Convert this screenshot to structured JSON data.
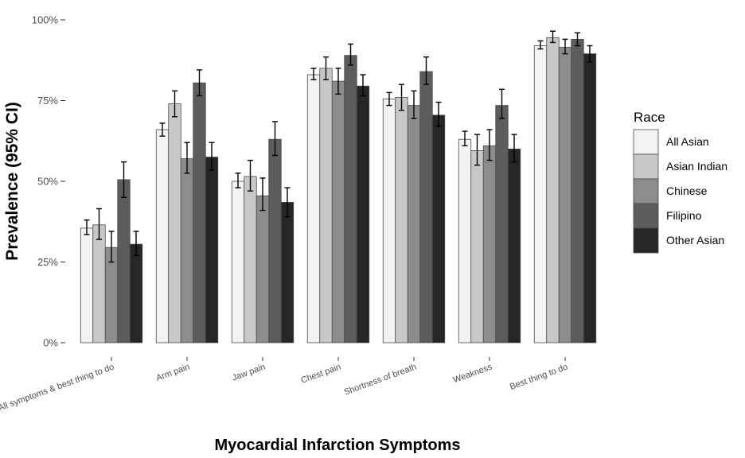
{
  "chart_data": {
    "type": "bar",
    "xlabel": "Myocardial Infarction Symptoms",
    "ylabel": "Prevalence (95% CI)",
    "ylim": [
      0,
      100
    ],
    "yticks": [
      0,
      25,
      50,
      75,
      100
    ],
    "ytick_labels": [
      "0%",
      "25%",
      "50%",
      "75%",
      "100%"
    ],
    "categories": [
      "All symptoms & best thing to do",
      "Arm pain",
      "Jaw pain",
      "Chest pain",
      "Shortness of breath",
      "Weakness",
      "Best thing to do"
    ],
    "legend_title": "Race",
    "legend_position": "right",
    "grid": false,
    "series": [
      {
        "name": "All Asian",
        "color": "#f2f2f2",
        "values": [
          35.5,
          66,
          50,
          83,
          75.5,
          63,
          92
        ],
        "ci_low": [
          33.5,
          64,
          48,
          81.5,
          73.5,
          61,
          91
        ],
        "ci_high": [
          38,
          68,
          52.5,
          85,
          77.5,
          65.5,
          93.5
        ]
      },
      {
        "name": "Asian Indian",
        "color": "#c8c8c8",
        "values": [
          36.5,
          74,
          51.5,
          85,
          76,
          59.5,
          94.5
        ],
        "ci_low": [
          32,
          70,
          47,
          81.5,
          72,
          55,
          93
        ],
        "ci_high": [
          41.5,
          78,
          56.5,
          88.5,
          80,
          64.5,
          96.5
        ]
      },
      {
        "name": "Chinese",
        "color": "#8c8c8c",
        "values": [
          29.5,
          57,
          45.5,
          81,
          73.5,
          61,
          91.5
        ],
        "ci_low": [
          25,
          52.5,
          41,
          77,
          69.5,
          56.5,
          89.5
        ],
        "ci_high": [
          34.5,
          62,
          51,
          85,
          78,
          66,
          94
        ]
      },
      {
        "name": "Filipino",
        "color": "#5c5c5c",
        "values": [
          50.5,
          80.5,
          63,
          89,
          84,
          73.5,
          94
        ],
        "ci_low": [
          45,
          76.5,
          58,
          86,
          80,
          69.5,
          92
        ],
        "ci_high": [
          56,
          84.5,
          68.5,
          92.5,
          88.5,
          78.5,
          96
        ]
      },
      {
        "name": "Other Asian",
        "color": "#262626",
        "values": [
          30.5,
          57.5,
          43.5,
          79.5,
          70.5,
          60,
          89.5
        ],
        "ci_low": [
          27,
          53.5,
          39,
          76.5,
          67,
          56,
          87
        ],
        "ci_high": [
          34.5,
          62,
          48,
          83,
          74.5,
          64.5,
          92
        ]
      }
    ]
  }
}
